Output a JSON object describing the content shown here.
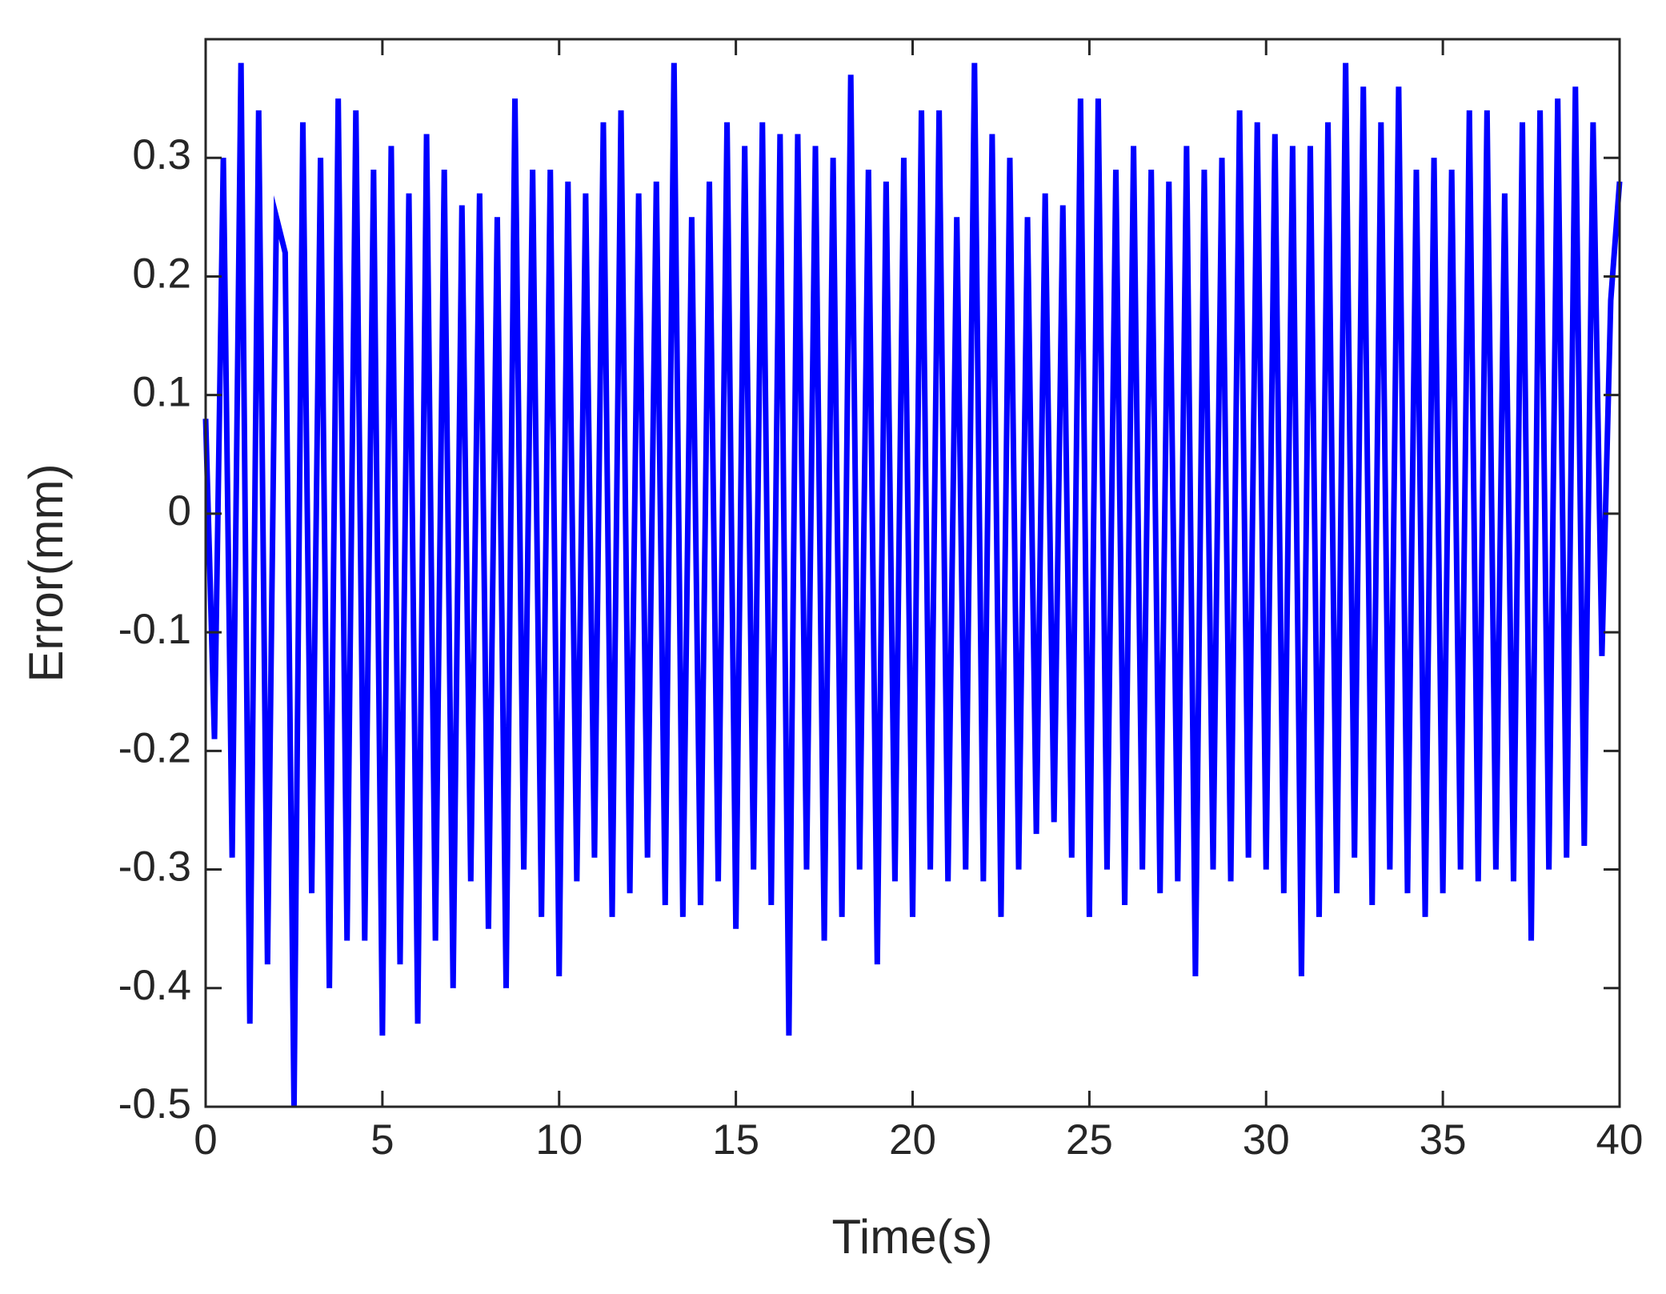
{
  "chart_data": {
    "type": "line",
    "xlabel": "Time(s)",
    "ylabel": "Error(mm)",
    "xlim": [
      0,
      40
    ],
    "xticks": [
      0,
      5,
      10,
      15,
      20,
      25,
      30,
      35,
      40
    ],
    "ylim": [
      -0.5,
      0.4
    ],
    "yticks": [
      -0.5,
      -0.4,
      -0.3,
      -0.2,
      -0.1,
      0,
      0.1,
      0.2,
      0.3
    ],
    "grid": false,
    "x": [
      0,
      0.25,
      0.5,
      0.75,
      1,
      1.25,
      1.5,
      1.75,
      2,
      2.25,
      2.5,
      2.75,
      3,
      3.25,
      3.5,
      3.75,
      4,
      4.25,
      4.5,
      4.75,
      5,
      5.25,
      5.5,
      5.75,
      6,
      6.25,
      6.5,
      6.75,
      7,
      7.25,
      7.5,
      7.75,
      8,
      8.25,
      8.5,
      8.75,
      9,
      9.25,
      9.5,
      9.75,
      10,
      10.25,
      10.5,
      10.75,
      11,
      11.25,
      11.5,
      11.75,
      12,
      12.25,
      12.5,
      12.75,
      13,
      13.25,
      13.5,
      13.75,
      14,
      14.25,
      14.5,
      14.75,
      15,
      15.25,
      15.5,
      15.75,
      16,
      16.25,
      16.5,
      16.75,
      17,
      17.25,
      17.5,
      17.75,
      18,
      18.25,
      18.5,
      18.75,
      19,
      19.25,
      19.5,
      19.75,
      20,
      20.25,
      20.5,
      20.75,
      21,
      21.25,
      21.5,
      21.75,
      22,
      22.25,
      22.5,
      22.75,
      23,
      23.25,
      23.5,
      23.75,
      24,
      24.25,
      24.5,
      24.75,
      25,
      25.25,
      25.5,
      25.75,
      26,
      26.25,
      26.5,
      26.75,
      27,
      27.25,
      27.5,
      27.75,
      28,
      28.25,
      28.5,
      28.75,
      29,
      29.25,
      29.5,
      29.75,
      30,
      30.25,
      30.5,
      30.75,
      31,
      31.25,
      31.5,
      31.75,
      32,
      32.25,
      32.5,
      32.75,
      33,
      33.25,
      33.5,
      33.75,
      34,
      34.25,
      34.5,
      34.75,
      35,
      35.25,
      35.5,
      35.75,
      36,
      36.25,
      36.5,
      36.75,
      37,
      37.25,
      37.5,
      37.75,
      38,
      38.25,
      38.5,
      38.75,
      39,
      39.25,
      39.5,
      39.75,
      40
    ],
    "series": [
      {
        "name": "Error",
        "color": "#0000ff",
        "values": [
          0.08,
          -0.19,
          0.3,
          -0.29,
          0.38,
          -0.43,
          0.34,
          -0.38,
          0.25,
          0.22,
          -0.5,
          0.33,
          -0.32,
          0.3,
          -0.4,
          0.35,
          -0.36,
          0.34,
          -0.36,
          0.29,
          -0.44,
          0.31,
          -0.38,
          0.27,
          -0.43,
          0.32,
          -0.36,
          0.29,
          -0.4,
          0.26,
          -0.31,
          0.27,
          -0.35,
          0.25,
          -0.4,
          0.35,
          -0.3,
          0.29,
          -0.34,
          0.29,
          -0.39,
          0.28,
          -0.31,
          0.27,
          -0.29,
          0.33,
          -0.34,
          0.34,
          -0.32,
          0.27,
          -0.29,
          0.28,
          -0.33,
          0.38,
          -0.34,
          0.25,
          -0.33,
          0.28,
          -0.31,
          0.33,
          -0.35,
          0.31,
          -0.3,
          0.33,
          -0.33,
          0.32,
          -0.44,
          0.32,
          -0.3,
          0.31,
          -0.36,
          0.3,
          -0.34,
          0.37,
          -0.3,
          0.29,
          -0.38,
          0.28,
          -0.31,
          0.3,
          -0.34,
          0.34,
          -0.3,
          0.34,
          -0.31,
          0.25,
          -0.3,
          0.38,
          -0.31,
          0.32,
          -0.34,
          0.3,
          -0.3,
          0.25,
          -0.27,
          0.27,
          -0.26,
          0.26,
          -0.29,
          0.35,
          -0.34,
          0.35,
          -0.3,
          0.29,
          -0.33,
          0.31,
          -0.3,
          0.29,
          -0.32,
          0.28,
          -0.31,
          0.31,
          -0.39,
          0.29,
          -0.3,
          0.3,
          -0.31,
          0.34,
          -0.29,
          0.33,
          -0.3,
          0.32,
          -0.32,
          0.31,
          -0.39,
          0.31,
          -0.34,
          0.33,
          -0.32,
          0.38,
          -0.29,
          0.36,
          -0.33,
          0.33,
          -0.3,
          0.36,
          -0.32,
          0.29,
          -0.34,
          0.3,
          -0.32,
          0.29,
          -0.3,
          0.34,
          -0.31,
          0.34,
          -0.3,
          0.27,
          -0.31,
          0.33,
          -0.36,
          0.34,
          -0.3,
          0.35,
          -0.29,
          0.36,
          -0.28,
          0.33,
          -0.12,
          0.18,
          0.28
        ]
      }
    ]
  }
}
